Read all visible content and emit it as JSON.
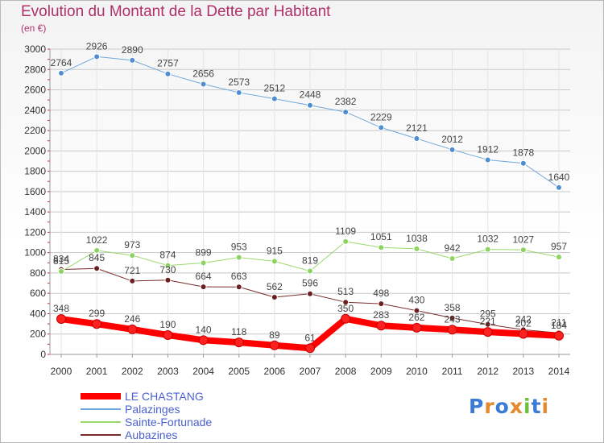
{
  "header": {
    "title": "Evolution du Montant de la Dette par Habitant",
    "subtitle": "(en €)"
  },
  "logo": {
    "text": "Proxiti"
  },
  "colors": {
    "title": "#b0306a",
    "grid": "#c8c8c8",
    "tick_marks": "#e02020"
  },
  "chart_data": {
    "type": "line",
    "title": "Evolution du Montant de la Dette par Habitant",
    "subtitle": "(en €)",
    "x": [
      "2000",
      "2001",
      "2002",
      "2003",
      "2004",
      "2005",
      "2006",
      "2007",
      "2008",
      "2009",
      "2010",
      "2011",
      "2012",
      "2013",
      "2014"
    ],
    "ylim": [
      0,
      3000
    ],
    "yticks": [
      0,
      200,
      400,
      600,
      800,
      1000,
      1200,
      1400,
      1600,
      1800,
      2000,
      2200,
      2400,
      2600,
      2800,
      3000
    ],
    "grid": true,
    "legend_position": "bottom-left",
    "series": [
      {
        "name": "LE CHASTANG",
        "color": "#ff0000",
        "marker": "#ff2020",
        "width": 8,
        "values": [
          348,
          299,
          246,
          190,
          140,
          118,
          89,
          61,
          350,
          283,
          262,
          243,
          221,
          202,
          184
        ]
      },
      {
        "name": "Palazinges",
        "color": "#6fa8dc",
        "marker": "#4f8fcf",
        "width": 1,
        "values": [
          2764,
          2926,
          2890,
          2757,
          2656,
          2573,
          2512,
          2448,
          2382,
          2229,
          2121,
          2012,
          1912,
          1878,
          1640
        ]
      },
      {
        "name": "Sainte-Fortunade",
        "color": "#9ad86b",
        "marker": "#8dd35f",
        "width": 1,
        "values": [
          815,
          1022,
          973,
          874,
          899,
          953,
          915,
          819,
          1109,
          1051,
          1038,
          942,
          1032,
          1027,
          957
        ]
      },
      {
        "name": "Aubazines",
        "color": "#7a2a2a",
        "marker": "#6b1f1f",
        "width": 1,
        "values": [
          834,
          845,
          721,
          730,
          664,
          663,
          562,
          596,
          513,
          498,
          430,
          358,
          295,
          242,
          211
        ]
      }
    ]
  }
}
